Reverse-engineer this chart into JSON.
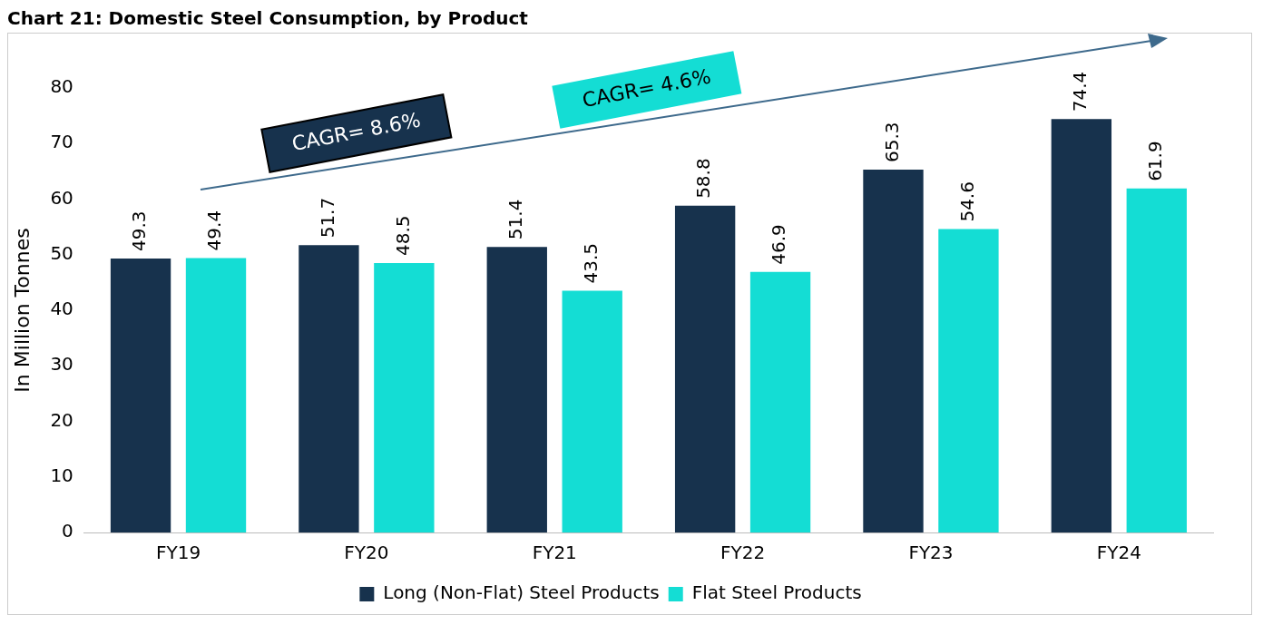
{
  "chart_data": {
    "type": "bar",
    "title": "Chart 21: Domestic Steel Consumption, by Product",
    "ylabel": "In Million Tonnes",
    "categories": [
      "FY19",
      "FY20",
      "FY21",
      "FY22",
      "FY23",
      "FY24"
    ],
    "series": [
      {
        "name": "Long (Non-Flat) Steel Products",
        "color": "#17324d",
        "values": [
          49.3,
          51.7,
          51.4,
          58.8,
          65.3,
          74.4
        ]
      },
      {
        "name": "Flat Steel Products",
        "color": "#14ddd4",
        "values": [
          49.4,
          48.5,
          43.5,
          46.9,
          54.6,
          61.9
        ]
      }
    ],
    "ylim": [
      0,
      80
    ],
    "yticks": [
      0,
      10,
      20,
      30,
      40,
      50,
      60,
      70,
      80
    ],
    "grid": false,
    "legend": "bottom",
    "data_labels": true,
    "annotations": [
      "CAGR= 8.6%",
      "CAGR= 4.6%"
    ]
  }
}
